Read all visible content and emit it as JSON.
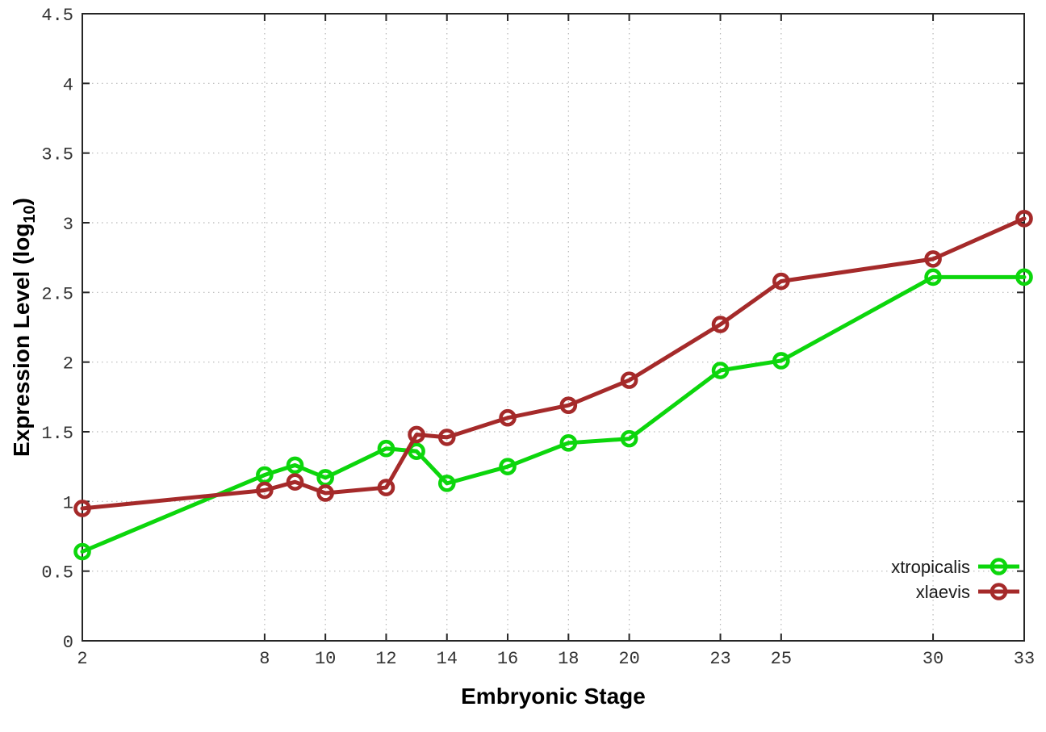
{
  "chart_data": {
    "type": "line",
    "title": "",
    "xlabel": "Embryonic Stage",
    "ylabel": {
      "prefix": "Expression Level (log",
      "sub": "10",
      "suffix": ")"
    },
    "x": [
      2,
      8,
      9,
      10,
      12,
      13,
      14,
      16,
      18,
      20,
      23,
      25,
      30,
      33
    ],
    "series": [
      {
        "name": "xtropicalis",
        "color": "#0CD60C",
        "marker": "open-circle",
        "values": [
          0.64,
          1.19,
          1.26,
          1.17,
          1.38,
          1.36,
          1.13,
          1.25,
          1.42,
          1.45,
          1.94,
          2.01,
          2.61,
          2.61
        ]
      },
      {
        "name": "xlaevis",
        "color": "#A52A2A",
        "marker": "open-circle",
        "values": [
          0.95,
          1.08,
          1.14,
          1.06,
          1.1,
          1.48,
          1.46,
          1.6,
          1.69,
          1.87,
          2.27,
          2.58,
          2.74,
          3.03
        ]
      }
    ],
    "xlim": [
      2,
      33
    ],
    "ylim": [
      0,
      4.5
    ],
    "x_ticks": [
      2,
      8,
      10,
      12,
      14,
      16,
      18,
      20,
      23,
      25,
      30,
      33
    ],
    "x_tick_labels": [
      "2",
      "8",
      "10",
      "12",
      "14",
      "16",
      "18",
      "20",
      "23",
      "25",
      "30",
      "33"
    ],
    "y_ticks": [
      0,
      0.5,
      1,
      1.5,
      2,
      2.5,
      3,
      3.5,
      4,
      4.5
    ],
    "y_tick_labels": [
      "0",
      "0.5",
      "1",
      "1.5",
      "2",
      "2.5",
      "3",
      "3.5",
      "4",
      "4.5"
    ],
    "grid": true,
    "grid_style": "dotted",
    "legend_position": "bottom-right",
    "legend": [
      "xtropicalis",
      "xlaevis"
    ],
    "colors": {
      "background": "#ffffff",
      "border": "#262626",
      "grid": "#b8b8b8",
      "tick_text": "#333333",
      "title_text": "#000000"
    }
  }
}
